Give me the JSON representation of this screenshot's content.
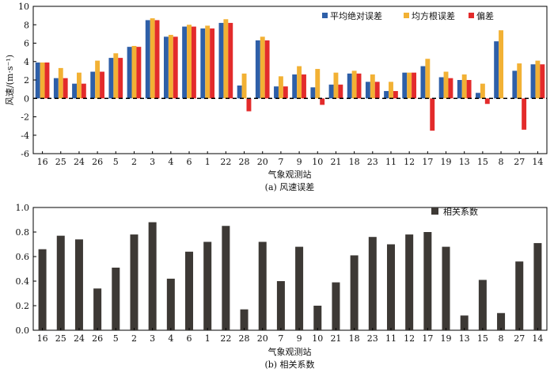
{
  "stations": [
    "16",
    "25",
    "24",
    "26",
    "5",
    "2",
    "3",
    "4",
    "6",
    "1",
    "22",
    "28",
    "20",
    "7",
    "9",
    "10",
    "21",
    "18",
    "23",
    "11",
    "12",
    "17",
    "19",
    "13",
    "15",
    "8",
    "27",
    "14"
  ],
  "chart_data": [
    {
      "type": "bar",
      "xlabel": "气象观测站",
      "ylabel": "风速/(m·s⁻¹)",
      "caption": "(a) 风速误差",
      "ylim": [
        -6,
        10
      ],
      "yticks": [
        -6,
        -4,
        -2,
        0,
        2,
        4,
        6,
        8,
        10
      ],
      "legend_position": "top-right",
      "reference_line": 0,
      "series": [
        {
          "name": "平均绝对误差",
          "color": "#2e5fa8",
          "values": [
            3.9,
            2.2,
            1.6,
            2.9,
            4.4,
            5.6,
            8.5,
            6.7,
            7.8,
            7.6,
            8.2,
            1.4,
            6.3,
            1.3,
            2.6,
            1.2,
            1.5,
            2.7,
            1.8,
            0.8,
            2.8,
            3.5,
            2.3,
            2.0,
            0.6,
            6.2,
            3.0,
            3.7
          ]
        },
        {
          "name": "均方根误差",
          "color": "#f2b134",
          "values": [
            3.9,
            3.3,
            2.8,
            4.1,
            4.9,
            5.7,
            8.7,
            6.9,
            8.0,
            7.9,
            8.6,
            2.7,
            6.7,
            2.4,
            3.5,
            3.2,
            2.8,
            3.0,
            2.6,
            1.8,
            2.8,
            4.3,
            2.9,
            2.6,
            1.6,
            7.4,
            3.8,
            4.1
          ]
        },
        {
          "name": "偏差",
          "color": "#e32b2b",
          "values": [
            3.9,
            2.2,
            1.6,
            2.9,
            4.4,
            5.6,
            8.5,
            6.7,
            7.8,
            7.6,
            8.2,
            -1.4,
            6.3,
            1.3,
            2.6,
            -0.7,
            1.5,
            2.7,
            1.8,
            0.8,
            2.8,
            -3.5,
            2.2,
            2.0,
            -0.6,
            0.0,
            -3.4,
            3.7
          ]
        }
      ]
    },
    {
      "type": "bar",
      "xlabel": "气象观测站",
      "caption": "(b) 相关系数",
      "ylim": [
        0,
        1
      ],
      "yticks": [
        0,
        0.2,
        0.4,
        0.6,
        0.8,
        1.0
      ],
      "legend_position": "top-right",
      "series": [
        {
          "name": "相关系数",
          "color": "#3d3935",
          "values": [
            0.66,
            0.77,
            0.74,
            0.34,
            0.51,
            0.78,
            0.88,
            0.42,
            0.64,
            0.72,
            0.85,
            0.17,
            0.72,
            0.4,
            0.68,
            0.2,
            0.39,
            0.61,
            0.76,
            0.7,
            0.78,
            0.8,
            0.68,
            0.12,
            0.41,
            0.14,
            0.56,
            0.71
          ]
        }
      ]
    }
  ]
}
